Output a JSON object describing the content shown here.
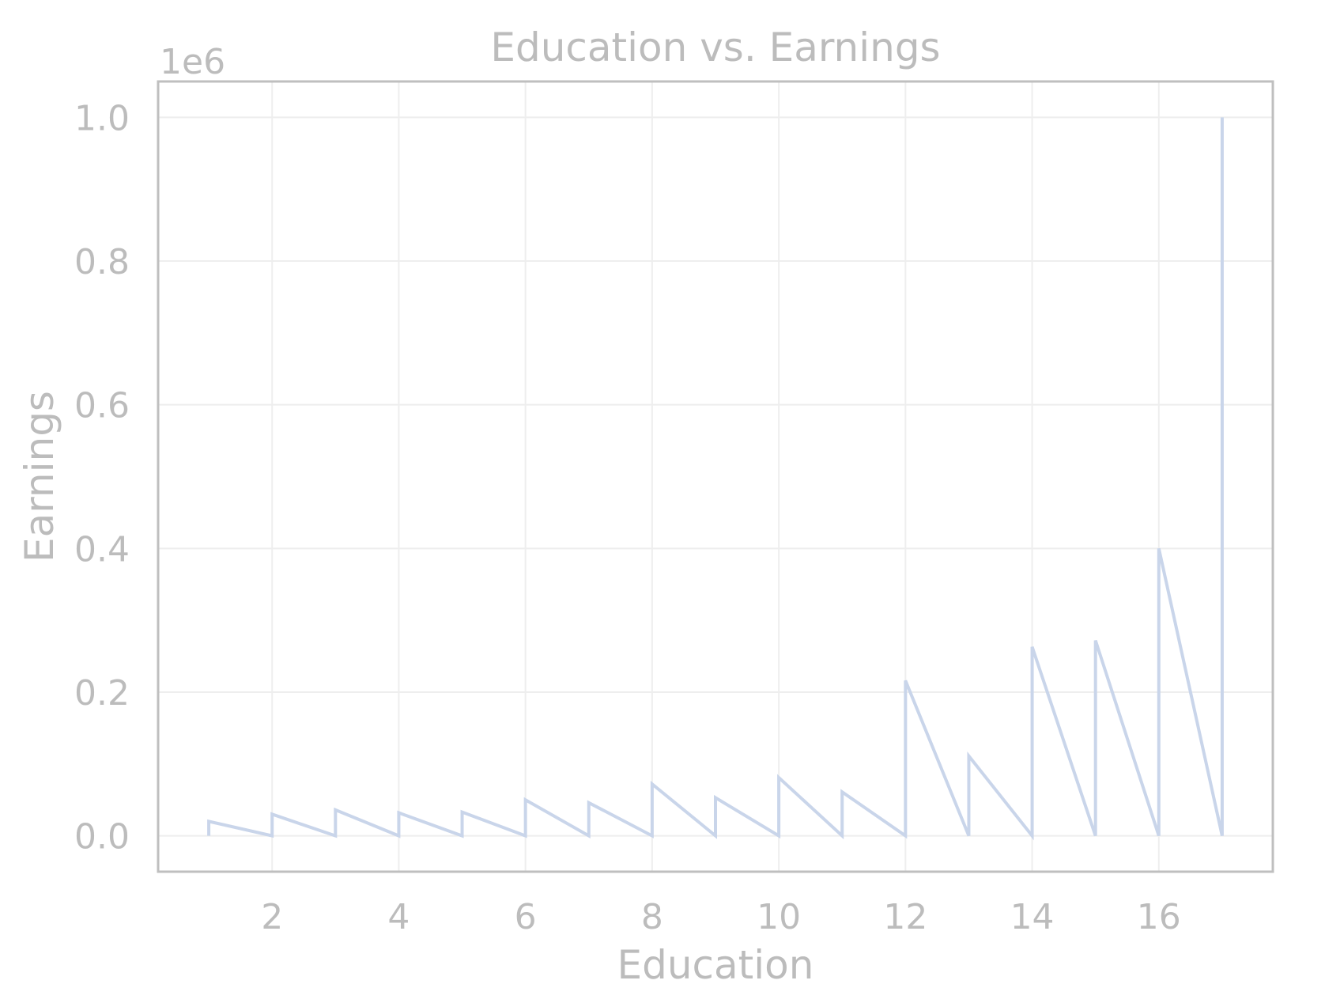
{
  "chart_data": {
    "type": "line",
    "title": "Education vs. Earnings",
    "xlabel": "Education",
    "ylabel": "Earnings",
    "y_offset_label": "1e6",
    "xlim": [
      0.2,
      17.8
    ],
    "ylim": [
      -50000,
      1050000
    ],
    "xticks": [
      2,
      4,
      6,
      8,
      10,
      12,
      14,
      16
    ],
    "yticks": [
      0,
      200000,
      400000,
      600000,
      800000,
      1000000
    ],
    "ytick_labels": [
      "0.0",
      "0.2",
      "0.4",
      "0.6",
      "0.8",
      "1.0"
    ],
    "grid": true,
    "colors": {
      "line": "#c9d5ea",
      "text": "#bcbcbc",
      "grid": "#eeeeee",
      "frame": "#bfbfbf"
    },
    "series": [
      {
        "x": [
          1,
          1,
          2,
          2,
          3,
          3,
          4,
          4,
          5,
          5,
          6,
          6,
          7,
          7,
          8,
          8,
          9,
          9,
          10,
          10,
          11,
          11,
          12,
          12,
          13,
          13,
          14,
          14,
          15,
          15,
          16,
          16,
          17,
          17
        ],
        "y": [
          0,
          20000,
          0,
          30000,
          0,
          36000,
          0,
          32000,
          0,
          33000,
          0,
          50000,
          0,
          46000,
          0,
          72000,
          0,
          53000,
          0,
          81000,
          0,
          61000,
          0,
          216000,
          0,
          111000,
          0,
          263000,
          0,
          272000,
          0,
          400000,
          0,
          1000000
        ]
      }
    ]
  }
}
